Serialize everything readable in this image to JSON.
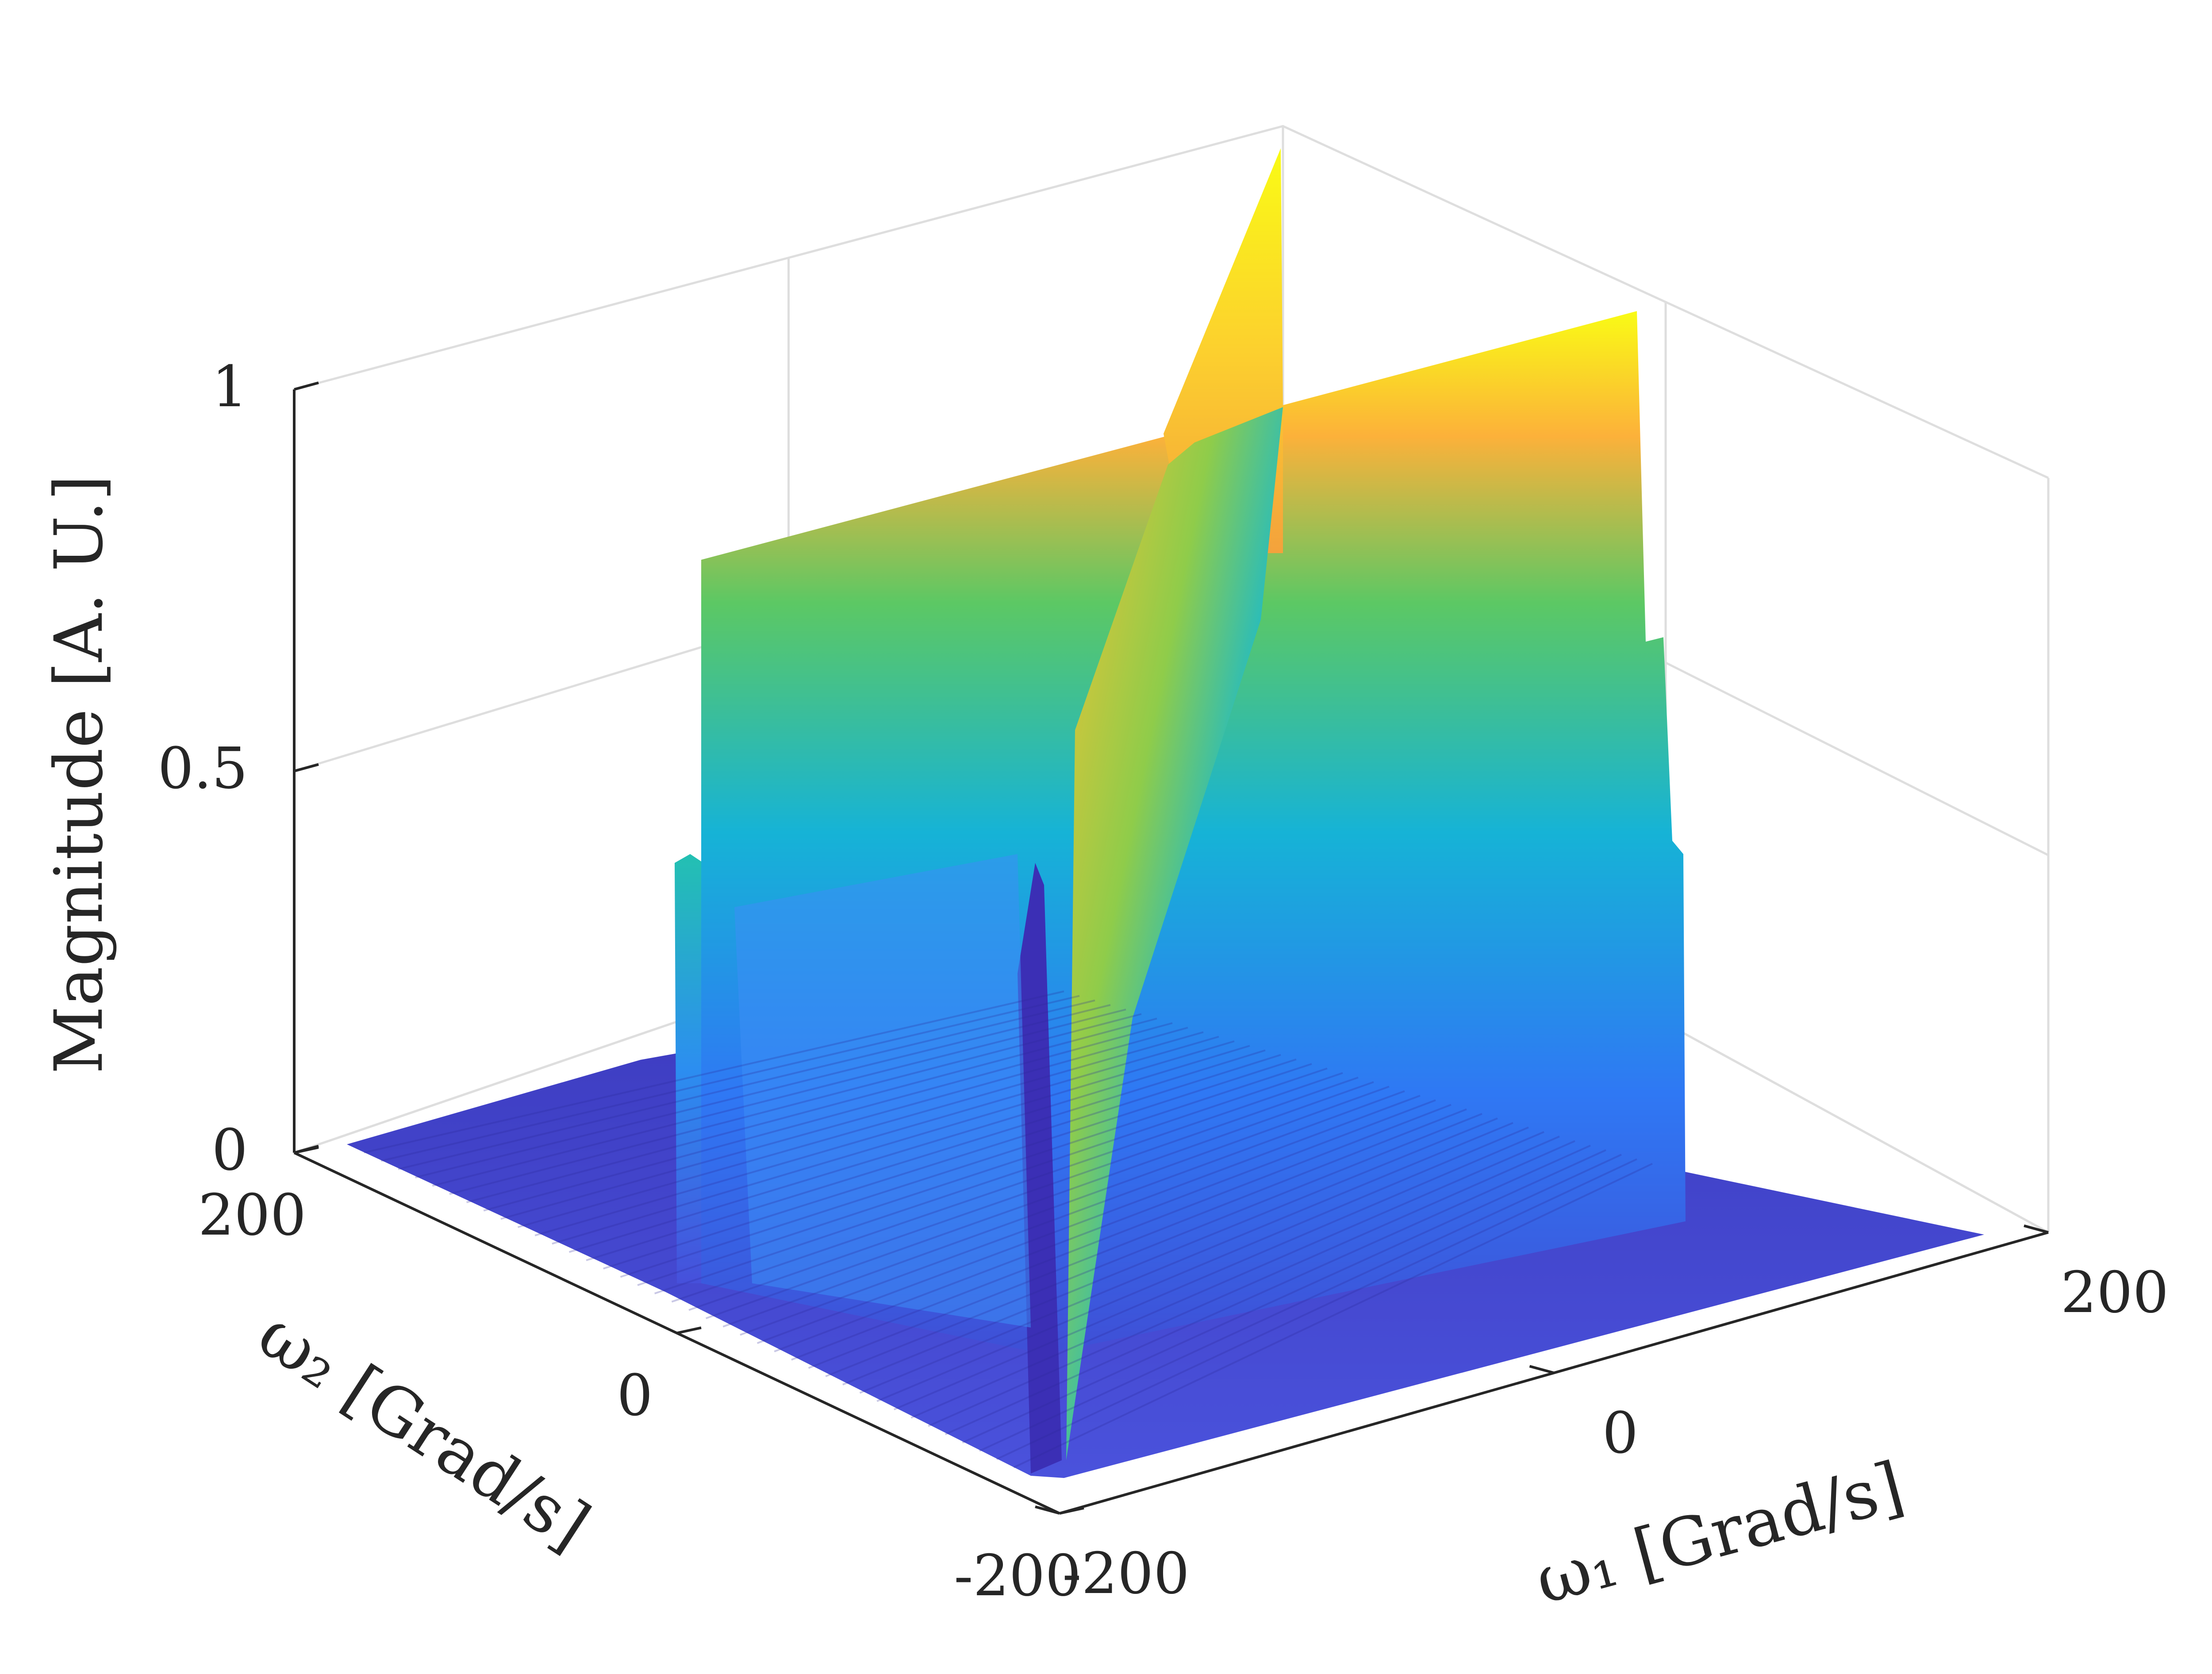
{
  "chart_data": {
    "type": "surface",
    "title": "",
    "zlabel": "Magnitude [A. U.]",
    "xlabel": "ω₁ [Grad/s]",
    "ylabel": "ω₂ [Grad/s]",
    "xlim": [
      -200,
      200
    ],
    "ylim": [
      -200,
      200
    ],
    "zlim": [
      0,
      1
    ],
    "xticks": [
      -200,
      0,
      200
    ],
    "yticks": [
      -200,
      0,
      200
    ],
    "zticks": [
      0,
      0.5,
      1
    ],
    "xtick_labels": [
      "-200",
      "0",
      "200"
    ],
    "ytick_labels": [
      "-200",
      "0",
      "200"
    ],
    "ztick_labels": [
      "0",
      "0.5",
      "1"
    ],
    "grid": true,
    "colormap": "parula",
    "colors": {
      "low": "#3e26a8",
      "mid": "#16b9d3",
      "high": "#f9fb15",
      "grid": "#dedede",
      "axis": "#262626"
    },
    "features": [
      {
        "name": "plateau",
        "description": "flat ridge band along ω₁ near ω₂ = 0",
        "peak": 0.77
      },
      {
        "name": "diagonal ridge",
        "description": "sharp ridge along ω₁ = ω₂",
        "peak": 1.0
      }
    ]
  }
}
